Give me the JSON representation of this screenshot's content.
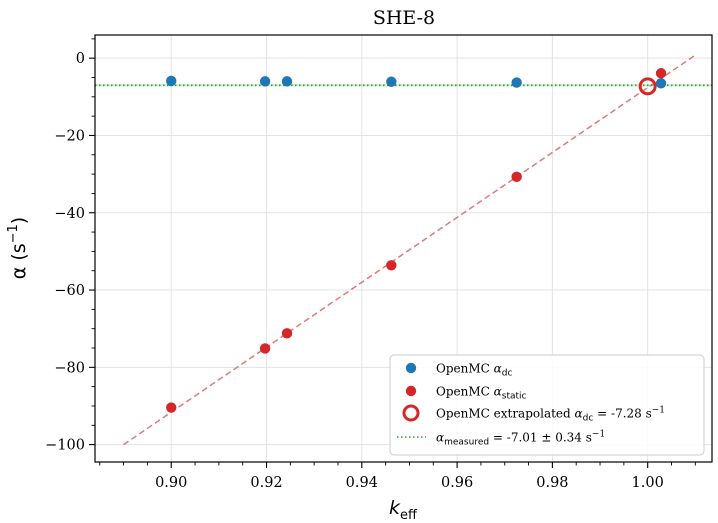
{
  "chart_data": {
    "type": "scatter",
    "title": "SHE-8",
    "xlabel": {
      "base": "k",
      "sub": "eff"
    },
    "ylabel": {
      "base": "α (s",
      "sup": "−1",
      "close": ")"
    },
    "xlim": [
      0.884,
      1.0135
    ],
    "ylim": [
      -104.5,
      6.0
    ],
    "x_ticks": [
      0.9,
      0.92,
      0.94,
      0.96,
      0.98,
      1.0
    ],
    "x_tick_labels": [
      "0.90",
      "0.92",
      "0.94",
      "0.96",
      "0.98",
      "1.00"
    ],
    "y_ticks": [
      0,
      -20,
      -40,
      -60,
      -80,
      -100
    ],
    "y_tick_labels": [
      "0",
      "−20",
      "−40",
      "−60",
      "−80",
      "−100"
    ],
    "grid": true,
    "series": [
      {
        "name": "OpenMC α_dc",
        "legend": {
          "prefix": "OpenMC ",
          "sym": "α",
          "sub": "dc",
          "suffix": ""
        },
        "color": "#1f77b4",
        "marker": "filled-circle",
        "x": [
          0.9,
          0.9197,
          0.9243,
          0.9462,
          0.9725,
          1.0028
        ],
        "y": [
          -5.9,
          -6.0,
          -6.0,
          -6.1,
          -6.3,
          -6.5
        ]
      },
      {
        "name": "OpenMC α_static",
        "legend": {
          "prefix": "OpenMC ",
          "sym": "α",
          "sub": "static",
          "suffix": ""
        },
        "color": "#d62728",
        "marker": "filled-circle",
        "x": [
          0.9,
          0.9197,
          0.9243,
          0.9462,
          0.9725,
          1.0028
        ],
        "y": [
          -90.4,
          -75.1,
          -71.2,
          -53.6,
          -30.7,
          -3.9
        ]
      },
      {
        "name": "OpenMC extrapolated α_dc = -7.28 s⁻¹",
        "legend": {
          "prefix": "OpenMC extrapolated ",
          "sym": "α",
          "sub": "dc",
          "suffix": " = -7.28 s",
          "sup": "−1"
        },
        "color": "#d62728",
        "marker": "open-circle",
        "x": [
          1.0
        ],
        "y": [
          -7.28
        ]
      }
    ],
    "fit_line": {
      "color": "#e07a77",
      "style": "dashed",
      "x": [
        0.89,
        1.01
      ],
      "y": [
        -100.0,
        0.8
      ]
    },
    "reference_line": {
      "name": "α_measured = -7.01 ± 0.34 s⁻¹",
      "legend": {
        "prefix": "",
        "sym": "α",
        "sub": "measured",
        "suffix": " = -7.01 ± 0.34 s",
        "sup": "−1"
      },
      "color": "#2ca02c",
      "style": "dotted",
      "y": -7.01,
      "band": [
        -7.35,
        -6.67
      ]
    },
    "legend_position": "lower-right"
  }
}
